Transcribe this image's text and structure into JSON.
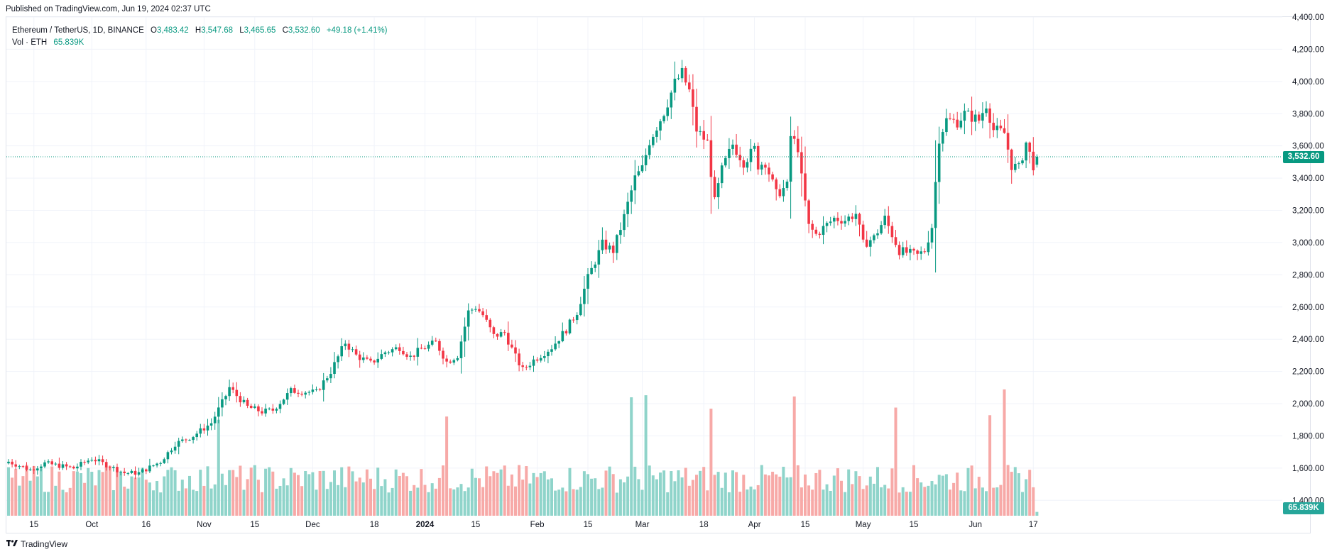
{
  "published": "Published on TradingView.com, Jun 19, 2024 02:37 UTC",
  "legend": {
    "symbol": "Ethereum / TetherUS, 1D, BINANCE",
    "o_label": "O",
    "o_value": "3,483.42",
    "h_label": "H",
    "h_value": "3,547.68",
    "l_label": "L",
    "l_value": "3,465.65",
    "c_label": "C",
    "c_value": "3,532.60",
    "change": "+49.18 (+1.41%)",
    "vol_label": "Vol · ETH",
    "vol_value": "65.839K"
  },
  "price_tag": "3,532.60",
  "volume_tag": "65.839K",
  "footer": {
    "brand": "TradingView"
  },
  "colors": {
    "up": "#089981",
    "down": "#f23645",
    "vol_up": "#8fd4ca",
    "vol_down": "#f7a9a7",
    "grid": "#f0f3fa"
  },
  "chart_data": {
    "type": "candlestick",
    "symbol": "ETH/USDT",
    "interval": "1D",
    "ylim": [
      1300,
      4400
    ],
    "y_ticks": [
      1400,
      1600,
      1800,
      2000,
      2200,
      2400,
      2600,
      2800,
      3000,
      3200,
      3400,
      3600,
      3800,
      4000,
      4200,
      4400
    ],
    "y_tick_labels": [
      "1,400.00",
      "1,600.00",
      "1,800.00",
      "2,000.00",
      "2,200.00",
      "2,400.00",
      "2,600.00",
      "2,800.00",
      "3,000.00",
      "3,200.00",
      "3,400.00",
      "3,600.00",
      "3,800.00",
      "4,000.00",
      "4,200.00",
      "4,400.00"
    ],
    "x_ticks": [
      {
        "label": "15",
        "bar": 7
      },
      {
        "label": "Oct",
        "bar": 23
      },
      {
        "label": "16",
        "bar": 38
      },
      {
        "label": "Nov",
        "bar": 54
      },
      {
        "label": "15",
        "bar": 68
      },
      {
        "label": "Dec",
        "bar": 84
      },
      {
        "label": "18",
        "bar": 101
      },
      {
        "label": "2024",
        "bar": 115
      },
      {
        "label": "15",
        "bar": 129
      },
      {
        "label": "Feb",
        "bar": 146
      },
      {
        "label": "15",
        "bar": 160
      },
      {
        "label": "Mar",
        "bar": 175
      },
      {
        "label": "18",
        "bar": 192
      },
      {
        "label": "Apr",
        "bar": 206
      },
      {
        "label": "15",
        "bar": 220
      },
      {
        "label": "May",
        "bar": 236
      },
      {
        "label": "15",
        "bar": 250
      },
      {
        "label": "Jun",
        "bar": 267
      },
      {
        "label": "17",
        "bar": 283
      }
    ],
    "close_anchors": [
      [
        0,
        1640
      ],
      [
        6,
        1590
      ],
      [
        10,
        1630
      ],
      [
        18,
        1600
      ],
      [
        23,
        1660
      ],
      [
        27,
        1620
      ],
      [
        32,
        1570
      ],
      [
        36,
        1570
      ],
      [
        42,
        1640
      ],
      [
        46,
        1750
      ],
      [
        51,
        1800
      ],
      [
        56,
        1880
      ],
      [
        60,
        2050
      ],
      [
        61,
        2100
      ],
      [
        63,
        2050
      ],
      [
        66,
        1980
      ],
      [
        70,
        1950
      ],
      [
        73,
        1960
      ],
      [
        78,
        2080
      ],
      [
        85,
        2070
      ],
      [
        89,
        2200
      ],
      [
        93,
        2380
      ],
      [
        96,
        2300
      ],
      [
        100,
        2250
      ],
      [
        104,
        2320
      ],
      [
        108,
        2350
      ],
      [
        111,
        2290
      ],
      [
        114,
        2340
      ],
      [
        118,
        2380
      ],
      [
        121,
        2260
      ],
      [
        124,
        2300
      ],
      [
        127,
        2570
      ],
      [
        129,
        2600
      ],
      [
        131,
        2550
      ],
      [
        134,
        2420
      ],
      [
        137,
        2440
      ],
      [
        140,
        2290
      ],
      [
        142,
        2210
      ],
      [
        145,
        2270
      ],
      [
        150,
        2350
      ],
      [
        154,
        2460
      ],
      [
        157,
        2570
      ],
      [
        160,
        2780
      ],
      [
        164,
        2990
      ],
      [
        167,
        2950
      ],
      [
        170,
        3160
      ],
      [
        173,
        3400
      ],
      [
        175,
        3460
      ],
      [
        177,
        3630
      ],
      [
        181,
        3810
      ],
      [
        184,
        3990
      ],
      [
        186,
        4050
      ],
      [
        188,
        3940
      ],
      [
        190,
        3700
      ],
      [
        193,
        3620
      ],
      [
        195,
        3250
      ],
      [
        197,
        3450
      ],
      [
        200,
        3610
      ],
      [
        203,
        3500
      ],
      [
        206,
        3580
      ],
      [
        207,
        3480
      ],
      [
        209,
        3500
      ],
      [
        212,
        3300
      ],
      [
        215,
        3350
      ],
      [
        216,
        3660
      ],
      [
        218,
        3590
      ],
      [
        219,
        3400
      ],
      [
        221,
        3100
      ],
      [
        223,
        3050
      ],
      [
        228,
        3150
      ],
      [
        231,
        3140
      ],
      [
        234,
        3180
      ],
      [
        236,
        2990
      ],
      [
        239,
        3030
      ],
      [
        242,
        3150
      ],
      [
        246,
        2950
      ],
      [
        251,
        2920
      ],
      [
        253,
        2950
      ],
      [
        255,
        3100
      ],
      [
        257,
        3650
      ],
      [
        259,
        3760
      ],
      [
        262,
        3750
      ],
      [
        264,
        3800
      ],
      [
        268,
        3760
      ],
      [
        270,
        3860
      ],
      [
        272,
        3700
      ],
      [
        275,
        3680
      ],
      [
        277,
        3480
      ],
      [
        279,
        3460
      ],
      [
        281,
        3620
      ],
      [
        283,
        3480
      ],
      [
        284,
        3532
      ]
    ],
    "last_candle": {
      "open": 3483.42,
      "high": 3547.68,
      "low": 3465.65,
      "close": 3532.6
    },
    "last_volume_k": 65.839,
    "volume_peak_bars": [
      58,
      121,
      172,
      176,
      194,
      217,
      245,
      271,
      275
    ]
  }
}
